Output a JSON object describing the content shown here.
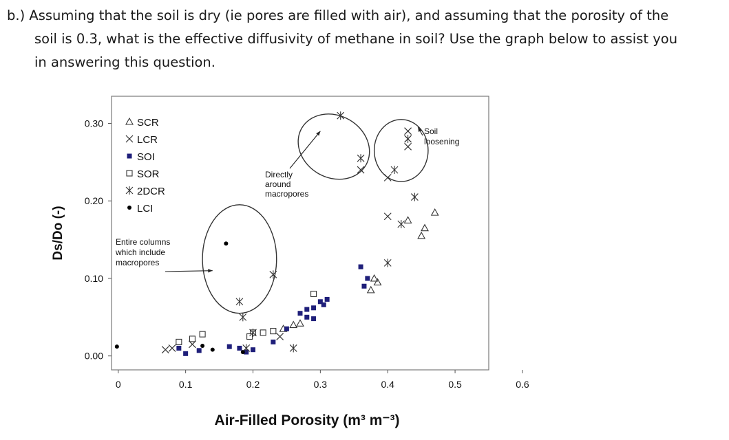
{
  "question": {
    "line1": "b.) Assuming that the soil is dry (ie pores are filled with air), and assuming that the porosity of the",
    "line2": "soil is 0.3, what is the effective diffusivity of methane in soil? Use the graph below to assist you",
    "line3": "in answering this question."
  },
  "chart_data": {
    "type": "scatter",
    "xlabel": "Air-Filled Porosity (m³ m⁻³)",
    "ylabel": "Ds/Do (-)",
    "xlim": [
      -0.01,
      0.55
    ],
    "ylim": [
      -0.018,
      0.335
    ],
    "x_ticks": [
      "0",
      "0.1",
      "0.2",
      "0.3",
      "0.4",
      "0.5",
      "0.6"
    ],
    "x_tick_values": [
      0,
      0.1,
      0.2,
      0.3,
      0.4,
      0.5,
      0.6
    ],
    "y_ticks": [
      "0.00",
      "0.10",
      "0.20",
      "0.30"
    ],
    "y_tick_values": [
      0.0,
      0.1,
      0.2,
      0.3
    ],
    "legend_position": "top-left",
    "series": [
      {
        "name": "SCR",
        "marker": "triangle-open",
        "color": "#333333",
        "points": [
          [
            0.26,
            0.04
          ],
          [
            0.27,
            0.042
          ],
          [
            0.245,
            0.035
          ],
          [
            0.38,
            0.1
          ],
          [
            0.385,
            0.095
          ],
          [
            0.375,
            0.085
          ],
          [
            0.45,
            0.155
          ],
          [
            0.455,
            0.165
          ],
          [
            0.47,
            0.185
          ],
          [
            0.43,
            0.175
          ]
        ]
      },
      {
        "name": "LCR",
        "marker": "cross",
        "color": "#333333",
        "points": [
          [
            0.07,
            0.008
          ],
          [
            0.08,
            0.01
          ],
          [
            0.24,
            0.025
          ],
          [
            0.4,
            0.18
          ],
          [
            0.4,
            0.23
          ],
          [
            0.36,
            0.24
          ],
          [
            0.43,
            0.28
          ],
          [
            0.43,
            0.29
          ],
          [
            0.43,
            0.27
          ],
          [
            0.11,
            0.015
          ]
        ]
      },
      {
        "name": "SOI",
        "marker": "square-filled",
        "color": "#1f1f7a",
        "points": [
          [
            0.09,
            0.01
          ],
          [
            0.1,
            0.003
          ],
          [
            0.12,
            0.007
          ],
          [
            0.165,
            0.012
          ],
          [
            0.18,
            0.01
          ],
          [
            0.19,
            0.005
          ],
          [
            0.2,
            0.008
          ],
          [
            0.25,
            0.035
          ],
          [
            0.27,
            0.055
          ],
          [
            0.28,
            0.06
          ],
          [
            0.29,
            0.062
          ],
          [
            0.3,
            0.07
          ],
          [
            0.305,
            0.066
          ],
          [
            0.31,
            0.073
          ],
          [
            0.36,
            0.115
          ],
          [
            0.37,
            0.1
          ],
          [
            0.365,
            0.09
          ],
          [
            0.23,
            0.018
          ],
          [
            0.28,
            0.05
          ],
          [
            0.29,
            0.048
          ]
        ]
      },
      {
        "name": "SOR",
        "marker": "square-open",
        "color": "#333333",
        "points": [
          [
            0.09,
            0.018
          ],
          [
            0.11,
            0.022
          ],
          [
            0.125,
            0.028
          ],
          [
            0.2,
            0.03
          ],
          [
            0.215,
            0.03
          ],
          [
            0.23,
            0.032
          ],
          [
            0.29,
            0.08
          ],
          [
            0.195,
            0.025
          ]
        ]
      },
      {
        "name": "2DCR",
        "marker": "asterisk",
        "color": "#333333",
        "points": [
          [
            0.18,
            0.07
          ],
          [
            0.185,
            0.05
          ],
          [
            0.2,
            0.03
          ],
          [
            0.19,
            0.01
          ],
          [
            0.23,
            0.105
          ],
          [
            0.33,
            0.31
          ],
          [
            0.41,
            0.24
          ],
          [
            0.42,
            0.17
          ],
          [
            0.43,
            0.28
          ],
          [
            0.44,
            0.205
          ],
          [
            0.4,
            0.12
          ],
          [
            0.36,
            0.255
          ],
          [
            0.26,
            0.01
          ]
        ]
      },
      {
        "name": "LCI",
        "marker": "circle-filled",
        "color": "#000000",
        "points": [
          [
            -0.002,
            0.012
          ],
          [
            0.16,
            0.145
          ],
          [
            0.14,
            0.008
          ],
          [
            0.185,
            0.005
          ],
          [
            0.125,
            0.013
          ]
        ]
      }
    ],
    "annotations": [
      {
        "text": "Entire columns\nwhich include\nmacropores",
        "points_to": [
          0.14,
          0.11
        ]
      },
      {
        "text": "Directly\naround\nmacropores",
        "points_to": [
          0.3,
          0.29
        ]
      },
      {
        "text": "Soil\nloosening",
        "points_to": [
          0.445,
          0.295
        ]
      }
    ],
    "ellipses": [
      {
        "center": [
          0.18,
          0.125
        ],
        "rx": 0.055,
        "ry": 0.07
      },
      {
        "center": [
          0.32,
          0.27
        ],
        "rx": 0.055,
        "ry": 0.04,
        "rotate_deg": 30
      },
      {
        "center": [
          0.42,
          0.265
        ],
        "rx": 0.04,
        "ry": 0.04
      }
    ]
  },
  "colors": {
    "text": "#1a1a1a",
    "axis": "#555555",
    "plot_bg": "#ffffff"
  }
}
